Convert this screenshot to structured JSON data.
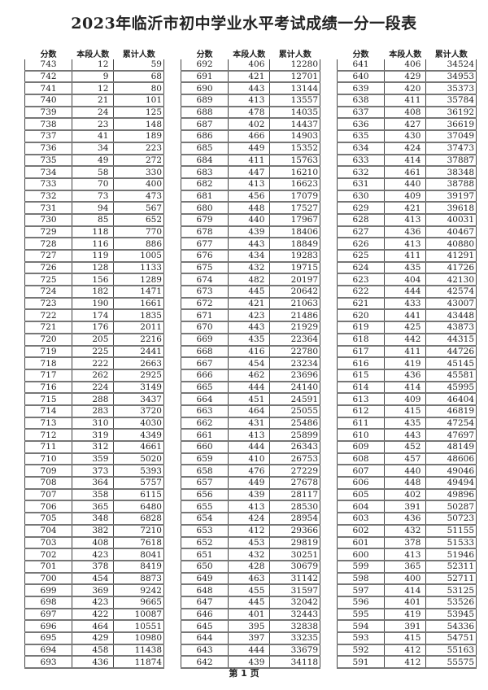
{
  "title": "2023年临沂市初中学业水平考试成绩一分一段表",
  "headers": [
    "分数",
    "本段人数",
    "累计人数"
  ],
  "footer": "第 1 页",
  "tables": [
    [
      [
        743,
        12,
        59
      ],
      [
        742,
        9,
        68
      ],
      [
        741,
        12,
        80
      ],
      [
        740,
        21,
        101
      ],
      [
        739,
        24,
        125
      ],
      [
        738,
        23,
        148
      ],
      [
        737,
        41,
        189
      ],
      [
        736,
        34,
        223
      ],
      [
        735,
        49,
        272
      ],
      [
        734,
        58,
        330
      ],
      [
        733,
        70,
        400
      ],
      [
        732,
        73,
        473
      ],
      [
        731,
        94,
        567
      ],
      [
        730,
        85,
        652
      ],
      [
        729,
        118,
        770
      ],
      [
        728,
        116,
        886
      ],
      [
        727,
        119,
        1005
      ],
      [
        726,
        128,
        1133
      ],
      [
        725,
        156,
        1289
      ],
      [
        724,
        182,
        1471
      ],
      [
        723,
        190,
        1661
      ],
      [
        722,
        174,
        1835
      ],
      [
        721,
        176,
        2011
      ],
      [
        720,
        205,
        2216
      ],
      [
        719,
        225,
        2441
      ],
      [
        718,
        222,
        2663
      ],
      [
        717,
        262,
        2925
      ],
      [
        716,
        224,
        3149
      ],
      [
        715,
        288,
        3437
      ],
      [
        714,
        283,
        3720
      ],
      [
        713,
        310,
        4030
      ],
      [
        712,
        319,
        4349
      ],
      [
        711,
        312,
        4661
      ],
      [
        710,
        359,
        5020
      ],
      [
        709,
        373,
        5393
      ],
      [
        708,
        364,
        5757
      ],
      [
        707,
        358,
        6115
      ],
      [
        706,
        365,
        6480
      ],
      [
        705,
        348,
        6828
      ],
      [
        704,
        382,
        7210
      ],
      [
        703,
        408,
        7618
      ],
      [
        702,
        423,
        8041
      ],
      [
        701,
        378,
        8419
      ],
      [
        700,
        454,
        8873
      ],
      [
        699,
        369,
        9242
      ],
      [
        698,
        423,
        9665
      ],
      [
        697,
        422,
        10087
      ],
      [
        696,
        464,
        10551
      ],
      [
        695,
        429,
        10980
      ],
      [
        694,
        458,
        11438
      ],
      [
        693,
        436,
        11874
      ]
    ],
    [
      [
        692,
        406,
        12280
      ],
      [
        691,
        421,
        12701
      ],
      [
        690,
        443,
        13144
      ],
      [
        689,
        413,
        13557
      ],
      [
        688,
        478,
        14035
      ],
      [
        687,
        402,
        14437
      ],
      [
        686,
        466,
        14903
      ],
      [
        685,
        449,
        15352
      ],
      [
        684,
        411,
        15763
      ],
      [
        683,
        447,
        16210
      ],
      [
        682,
        413,
        16623
      ],
      [
        681,
        456,
        17079
      ],
      [
        680,
        448,
        17527
      ],
      [
        679,
        440,
        17967
      ],
      [
        678,
        439,
        18406
      ],
      [
        677,
        443,
        18849
      ],
      [
        676,
        434,
        19283
      ],
      [
        675,
        432,
        19715
      ],
      [
        674,
        482,
        20197
      ],
      [
        673,
        445,
        20642
      ],
      [
        672,
        421,
        21063
      ],
      [
        671,
        423,
        21486
      ],
      [
        670,
        443,
        21929
      ],
      [
        669,
        435,
        22364
      ],
      [
        668,
        416,
        22780
      ],
      [
        667,
        454,
        23234
      ],
      [
        666,
        462,
        23696
      ],
      [
        665,
        444,
        24140
      ],
      [
        664,
        451,
        24591
      ],
      [
        663,
        464,
        25055
      ],
      [
        662,
        431,
        25486
      ],
      [
        661,
        413,
        25899
      ],
      [
        660,
        444,
        26343
      ],
      [
        659,
        410,
        26753
      ],
      [
        658,
        476,
        27229
      ],
      [
        657,
        449,
        27678
      ],
      [
        656,
        439,
        28117
      ],
      [
        655,
        413,
        28530
      ],
      [
        654,
        424,
        28954
      ],
      [
        653,
        412,
        29366
      ],
      [
        652,
        453,
        29819
      ],
      [
        651,
        432,
        30251
      ],
      [
        650,
        428,
        30679
      ],
      [
        649,
        463,
        31142
      ],
      [
        648,
        455,
        31597
      ],
      [
        647,
        445,
        32042
      ],
      [
        646,
        401,
        32443
      ],
      [
        645,
        395,
        32838
      ],
      [
        644,
        397,
        33235
      ],
      [
        643,
        444,
        33679
      ],
      [
        642,
        439,
        34118
      ]
    ],
    [
      [
        641,
        406,
        34524
      ],
      [
        640,
        429,
        34953
      ],
      [
        639,
        420,
        35373
      ],
      [
        638,
        411,
        35784
      ],
      [
        637,
        408,
        36192
      ],
      [
        636,
        427,
        36619
      ],
      [
        635,
        430,
        37049
      ],
      [
        634,
        424,
        37473
      ],
      [
        633,
        414,
        37887
      ],
      [
        632,
        461,
        38348
      ],
      [
        631,
        440,
        38788
      ],
      [
        630,
        409,
        39197
      ],
      [
        629,
        421,
        39618
      ],
      [
        628,
        413,
        40031
      ],
      [
        627,
        436,
        40467
      ],
      [
        626,
        413,
        40880
      ],
      [
        625,
        411,
        41291
      ],
      [
        624,
        435,
        41726
      ],
      [
        623,
        404,
        42130
      ],
      [
        622,
        444,
        42574
      ],
      [
        621,
        433,
        43007
      ],
      [
        620,
        441,
        43448
      ],
      [
        619,
        425,
        43873
      ],
      [
        618,
        442,
        44315
      ],
      [
        617,
        411,
        44726
      ],
      [
        616,
        419,
        45145
      ],
      [
        615,
        436,
        45581
      ],
      [
        614,
        414,
        45995
      ],
      [
        613,
        409,
        46404
      ],
      [
        612,
        415,
        46819
      ],
      [
        611,
        435,
        47254
      ],
      [
        610,
        443,
        47697
      ],
      [
        609,
        452,
        48149
      ],
      [
        608,
        457,
        48606
      ],
      [
        607,
        440,
        49046
      ],
      [
        606,
        448,
        49494
      ],
      [
        605,
        402,
        49896
      ],
      [
        604,
        391,
        50287
      ],
      [
        603,
        436,
        50723
      ],
      [
        602,
        432,
        51155
      ],
      [
        601,
        378,
        51533
      ],
      [
        600,
        413,
        51946
      ],
      [
        599,
        365,
        52311
      ],
      [
        598,
        400,
        52711
      ],
      [
        597,
        414,
        53125
      ],
      [
        596,
        401,
        53526
      ],
      [
        595,
        419,
        53945
      ],
      [
        594,
        391,
        54336
      ],
      [
        593,
        415,
        54751
      ],
      [
        592,
        412,
        55163
      ],
      [
        591,
        412,
        55575
      ]
    ]
  ]
}
